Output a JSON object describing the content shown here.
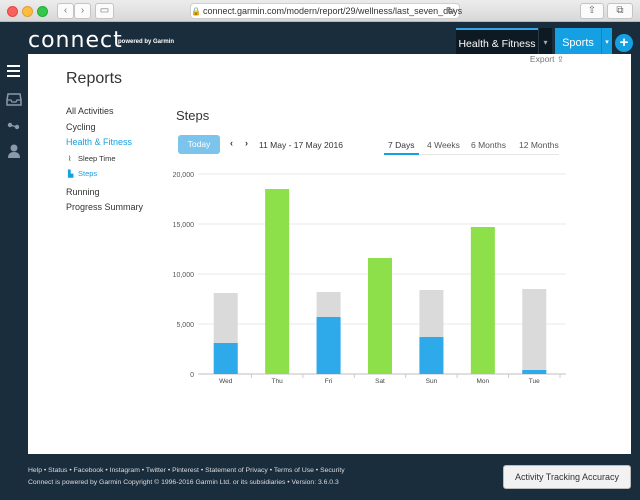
{
  "browser": {
    "url": "connect.garmin.com/modern/report/29/wellness/last_seven_days"
  },
  "header": {
    "logo": "connect",
    "logo_sub": "powered by Garmin",
    "tab_active": "Health & Fitness",
    "tab_sports": "Sports"
  },
  "page": {
    "title": "Reports",
    "export_label": "Export"
  },
  "side_nav": {
    "items": [
      {
        "label": "All Activities"
      },
      {
        "label": "Cycling"
      },
      {
        "label": "Health & Fitness"
      },
      {
        "label": "Sleep Time"
      },
      {
        "label": "Steps"
      },
      {
        "label": "Running"
      },
      {
        "label": "Progress Summary"
      }
    ]
  },
  "report": {
    "section_title": "Steps",
    "today_label": "Today",
    "date_range": "11 May - 17 May 2016",
    "ranges": [
      "7 Days",
      "4 Weeks",
      "6 Months",
      "12 Months"
    ],
    "active_range": "7 Days"
  },
  "chart_data": {
    "type": "bar",
    "categories": [
      "Wed",
      "Thu",
      "Fri",
      "Sat",
      "Sun",
      "Mon",
      "Tue"
    ],
    "series": [
      {
        "values": [
          3100,
          18500,
          5700,
          11600,
          3700,
          14700,
          400
        ]
      },
      {
        "values": [
          8100,
          0,
          8200,
          0,
          8400,
          0,
          8500
        ]
      }
    ],
    "goal_reached": [
      false,
      true,
      false,
      true,
      false,
      true,
      false
    ],
    "ylim": [
      0,
      20000
    ],
    "y_ticks": [
      "0",
      "5,000",
      "10,000",
      "15,000",
      "20,000"
    ],
    "grid": true,
    "colors": {
      "steps": "#2eaaea",
      "goal": "#dadada",
      "met": "#8ee04a"
    }
  },
  "footer": {
    "links": [
      "Help",
      "Status",
      "Facebook",
      "Instagram",
      "Twitter",
      "Pinterest",
      "Statement of Privacy",
      "Terms of Use",
      "Security"
    ],
    "copyright": "Connect is powered by Garmin  Copyright © 1996-2016 Garmin Ltd. or its subsidiaries • Version: 3.6.0.3",
    "button": "Activity Tracking Accuracy"
  }
}
